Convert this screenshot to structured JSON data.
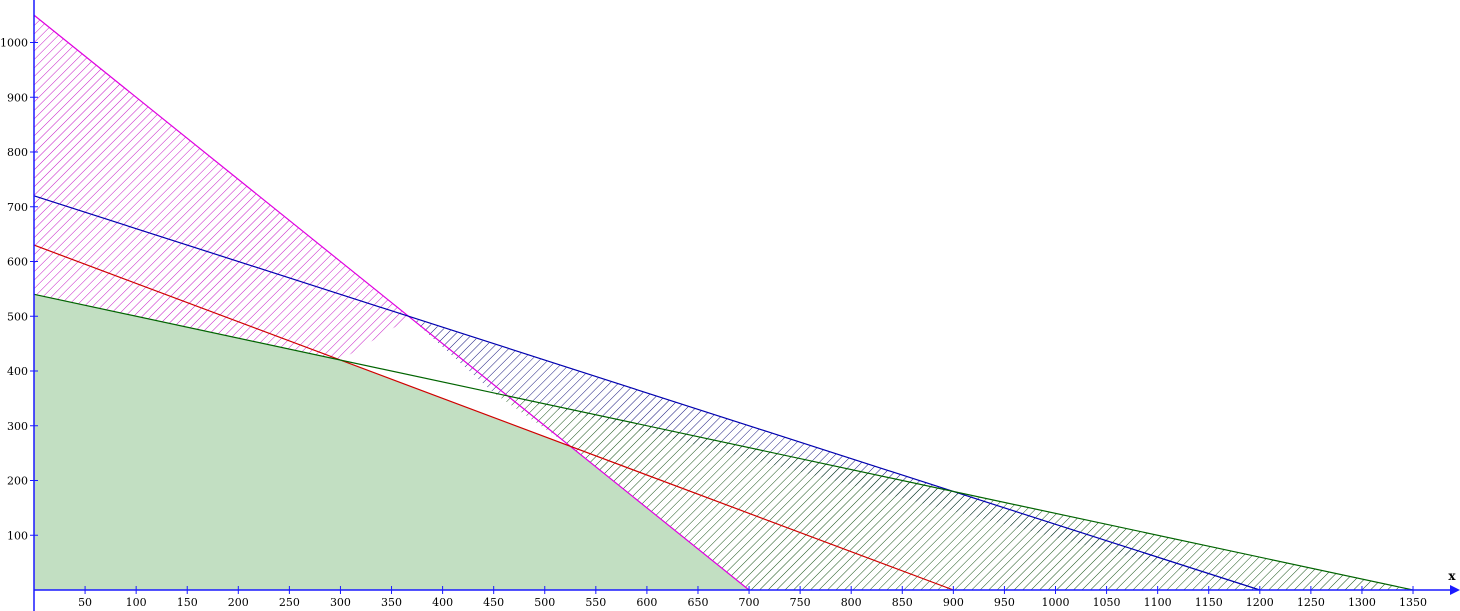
{
  "chart_data": {
    "type": "area",
    "title": "",
    "xlabel": "x",
    "ylabel": "",
    "xlim": [
      0,
      1385
    ],
    "ylim": [
      0,
      1050
    ],
    "x_ticks": [
      50,
      100,
      150,
      200,
      250,
      300,
      350,
      400,
      450,
      500,
      550,
      600,
      650,
      700,
      750,
      800,
      850,
      900,
      950,
      1000,
      1050,
      1100,
      1150,
      1200,
      1250,
      1300,
      1350
    ],
    "y_ticks": [
      100,
      200,
      300,
      400,
      500,
      600,
      700,
      800,
      900,
      1000
    ],
    "grid": false,
    "lines": [
      {
        "x": [
          0,
          700
        ],
        "y": [
          1050,
          0
        ],
        "color": "#e000e0"
      },
      {
        "x": [
          0,
          1200
        ],
        "y": [
          720,
          0
        ],
        "color": "#0000b0"
      },
      {
        "x": [
          0,
          900
        ],
        "y": [
          630,
          0
        ],
        "color": "#d00000"
      },
      {
        "x": [
          0,
          1350
        ],
        "y": [
          540,
          0
        ],
        "color": "#006400"
      }
    ],
    "feasible_region": [
      [
        0,
        0
      ],
      [
        0,
        540
      ],
      [
        300,
        420
      ],
      [
        525,
        262.5
      ],
      [
        700,
        0
      ]
    ],
    "feasible_color": "#c2dfc2",
    "hatched_regions": [
      {
        "color": "#c000c0",
        "polygon": [
          [
            0,
            540
          ],
          [
            0,
            1050
          ],
          [
            368.42,
            497.37
          ],
          [
            300,
            420
          ]
        ]
      },
      {
        "color": "#000070",
        "polygon": [
          [
            368.42,
            497.37
          ],
          [
            450,
            360
          ],
          [
            1200,
            0
          ],
          [
            1200,
            0
          ],
          [
            900,
            180
          ]
        ]
      },
      {
        "color": "#004000",
        "polygon": [
          [
            450,
            360
          ],
          [
            525,
            262.5
          ],
          [
            700,
            0
          ],
          [
            1350,
            0
          ],
          [
            900,
            180
          ]
        ]
      }
    ]
  }
}
